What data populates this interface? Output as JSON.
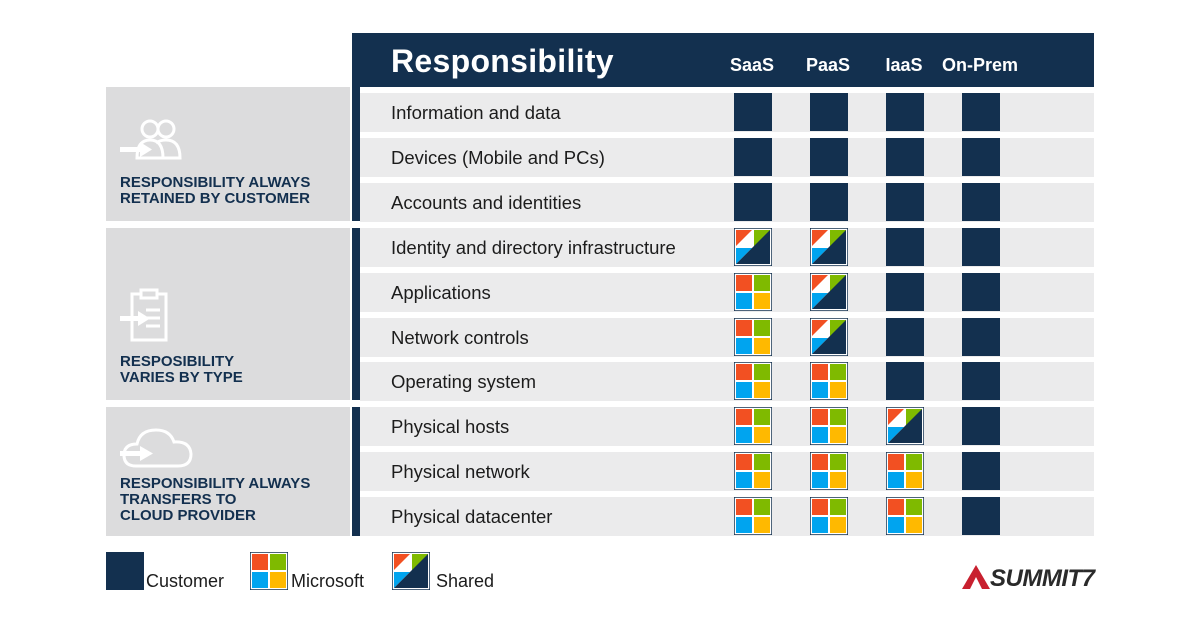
{
  "header": {
    "title": "Responsibility",
    "columns": [
      "SaaS",
      "PaaS",
      "IaaS",
      "On-Prem"
    ]
  },
  "groups": [
    {
      "label_lines": [
        "RESPONSIBILITY ALWAYS",
        "RETAINED BY CUSTOMER"
      ],
      "icon": "users-icon"
    },
    {
      "label_lines": [
        "RESPOSIBILITY",
        "VARIES BY TYPE"
      ],
      "icon": "clipboard-icon"
    },
    {
      "label_lines": [
        "RESPONSIBILITY ALWAYS",
        "TRANSFERS TO",
        "CLOUD PROVIDER"
      ],
      "icon": "cloud-icon"
    }
  ],
  "rows": [
    {
      "label": "Information and data",
      "cells": [
        "customer",
        "customer",
        "customer",
        "customer"
      ]
    },
    {
      "label": "Devices (Mobile and PCs)",
      "cells": [
        "customer",
        "customer",
        "customer",
        "customer"
      ]
    },
    {
      "label": "Accounts and identities",
      "cells": [
        "customer",
        "customer",
        "customer",
        "customer"
      ]
    },
    {
      "label": "Identity and directory infrastructure",
      "cells": [
        "shared",
        "shared",
        "customer",
        "customer"
      ]
    },
    {
      "label": "Applications",
      "cells": [
        "microsoft",
        "shared",
        "customer",
        "customer"
      ]
    },
    {
      "label": "Network controls",
      "cells": [
        "microsoft",
        "shared",
        "customer",
        "customer"
      ]
    },
    {
      "label": "Operating system",
      "cells": [
        "microsoft",
        "microsoft",
        "customer",
        "customer"
      ]
    },
    {
      "label": "Physical hosts",
      "cells": [
        "microsoft",
        "microsoft",
        "shared",
        "customer"
      ]
    },
    {
      "label": "Physical network",
      "cells": [
        "microsoft",
        "microsoft",
        "microsoft",
        "customer"
      ]
    },
    {
      "label": "Physical datacenter",
      "cells": [
        "microsoft",
        "microsoft",
        "microsoft",
        "customer"
      ]
    }
  ],
  "legend": [
    {
      "key": "customer",
      "label": "Customer"
    },
    {
      "key": "microsoft",
      "label": "Microsoft"
    },
    {
      "key": "shared",
      "label": "Shared"
    }
  ],
  "logo": {
    "text": "SUMMIT7"
  },
  "colors": {
    "navy": "#13304f",
    "row_bg": "#ebebec",
    "group_bg": "#dcdcdd",
    "ms_red": "#f25022",
    "ms_green": "#7fba00",
    "ms_blue": "#00a4ef",
    "ms_yellow": "#ffb900",
    "logo_red": "#c8202f"
  }
}
